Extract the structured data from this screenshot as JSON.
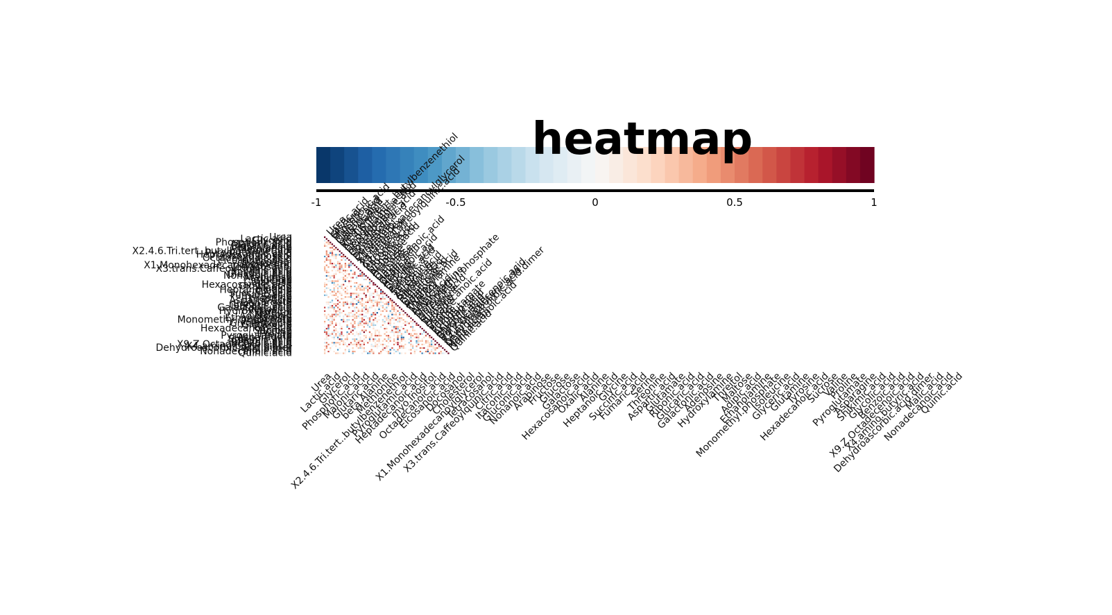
{
  "chart_data": {
    "type": "heatmap",
    "title": "heatmap",
    "subtype": "correlation matrix (lower triangle)",
    "colorbar": {
      "ticks": [
        "-1",
        "-0.5",
        "0",
        "0.5",
        "1"
      ],
      "values": [
        -1,
        -0.5,
        0,
        0.5,
        1
      ],
      "range": [
        -1,
        1
      ],
      "colors": [
        "#053061",
        "#2166ac",
        "#4393c3",
        "#92c5de",
        "#d1e5f0",
        "#f7f7f7",
        "#fddbc7",
        "#f4a582",
        "#d6604d",
        "#b2182b",
        "#67001f"
      ]
    },
    "variables": [
      "Urea",
      "Lactic.acid",
      "Glycerol",
      "Phosphoric.acid",
      "Malonic.acid",
      "Glutaric.acid",
      "beta.Alanine",
      "Methionine",
      "X2.4.6.Tri.tert..butylbenzenethiol",
      "Pyroglutamic.acid",
      "Heptadecanoic.acid",
      "myo.Inositol",
      "Octadecanoic.acid",
      "Eicosanoic.acid",
      "Docosanol",
      "Cholesterol",
      "X1.Monohexadecanoylglycerol",
      "Tetracosanol",
      "X3.trans.Caffeoylquinic.acid",
      "Citric.acid",
      "Itaconic.acid",
      "Gluconic.acid",
      "Nonanoic.acid",
      "Arabinose",
      "Fructose",
      "Glucose",
      "Galactose",
      "Hexacosanoic.acid",
      "Oxalic.acid",
      "Alanine",
      "Heptanoic.acid",
      "Glycine",
      "Succinic.acid",
      "Fumaric.acid",
      "Serine",
      "Threonine",
      "Aspartic.acid",
      "Glutamate",
      "Ribonic.acid",
      "Glucaric.acid",
      "Galactonic.acid",
      "Adenosine",
      "Hydroxylamine",
      "Threitol",
      "Maltose",
      "Adipic.acid",
      "Ethanolamine",
      "Monomethyl.phosphate",
      "Isoleucine",
      "Glyceric.acid",
      "Glutamine",
      "Tyrosine",
      "Hexadecanoic.acid",
      "Sucrose",
      "Valine",
      "Proline",
      "Pyroglutamate",
      "Asparagine",
      "Shikimic.acid",
      "Glycolic.acid",
      "Benzoic.acid",
      "X9.Z.Octadecenoic.acid",
      "X4.amino.butyric.acid",
      "Dehydroascorbic.acid.dimer",
      "Malic.acid",
      "Nonadecanoic.acid",
      "Quinic.acid"
    ],
    "value_seed": 7
  }
}
